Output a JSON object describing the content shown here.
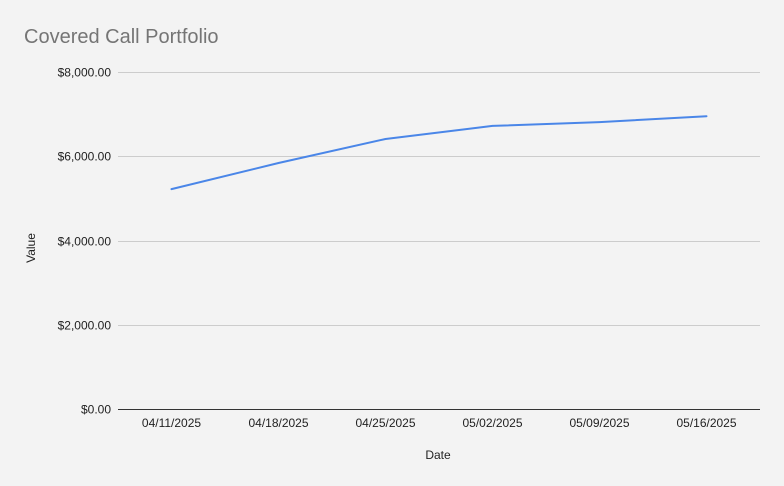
{
  "colors": {
    "background": "#f3f3f3",
    "series_line": "#4a86e8",
    "gridline": "#cccccc",
    "baseline": "#333333",
    "title": "#757575",
    "text": "#222222"
  },
  "chart_data": {
    "type": "line",
    "title": "Covered Call Portfolio",
    "xlabel": "Date",
    "ylabel": "Value",
    "x": [
      "04/11/2025",
      "04/18/2025",
      "04/25/2025",
      "05/02/2025",
      "05/09/2025",
      "05/16/2025"
    ],
    "series": [
      {
        "values": [
          5220,
          5840,
          6410,
          6720,
          6810,
          6950
        ]
      }
    ],
    "ylim": [
      0,
      8000
    ],
    "yticks": [
      "$0.00",
      "$2,000.00",
      "$4,000.00",
      "$6,000.00",
      "$8,000.00"
    ],
    "ytick_values": [
      0,
      2000,
      4000,
      6000,
      8000
    ],
    "grid": true,
    "legend": "none"
  }
}
